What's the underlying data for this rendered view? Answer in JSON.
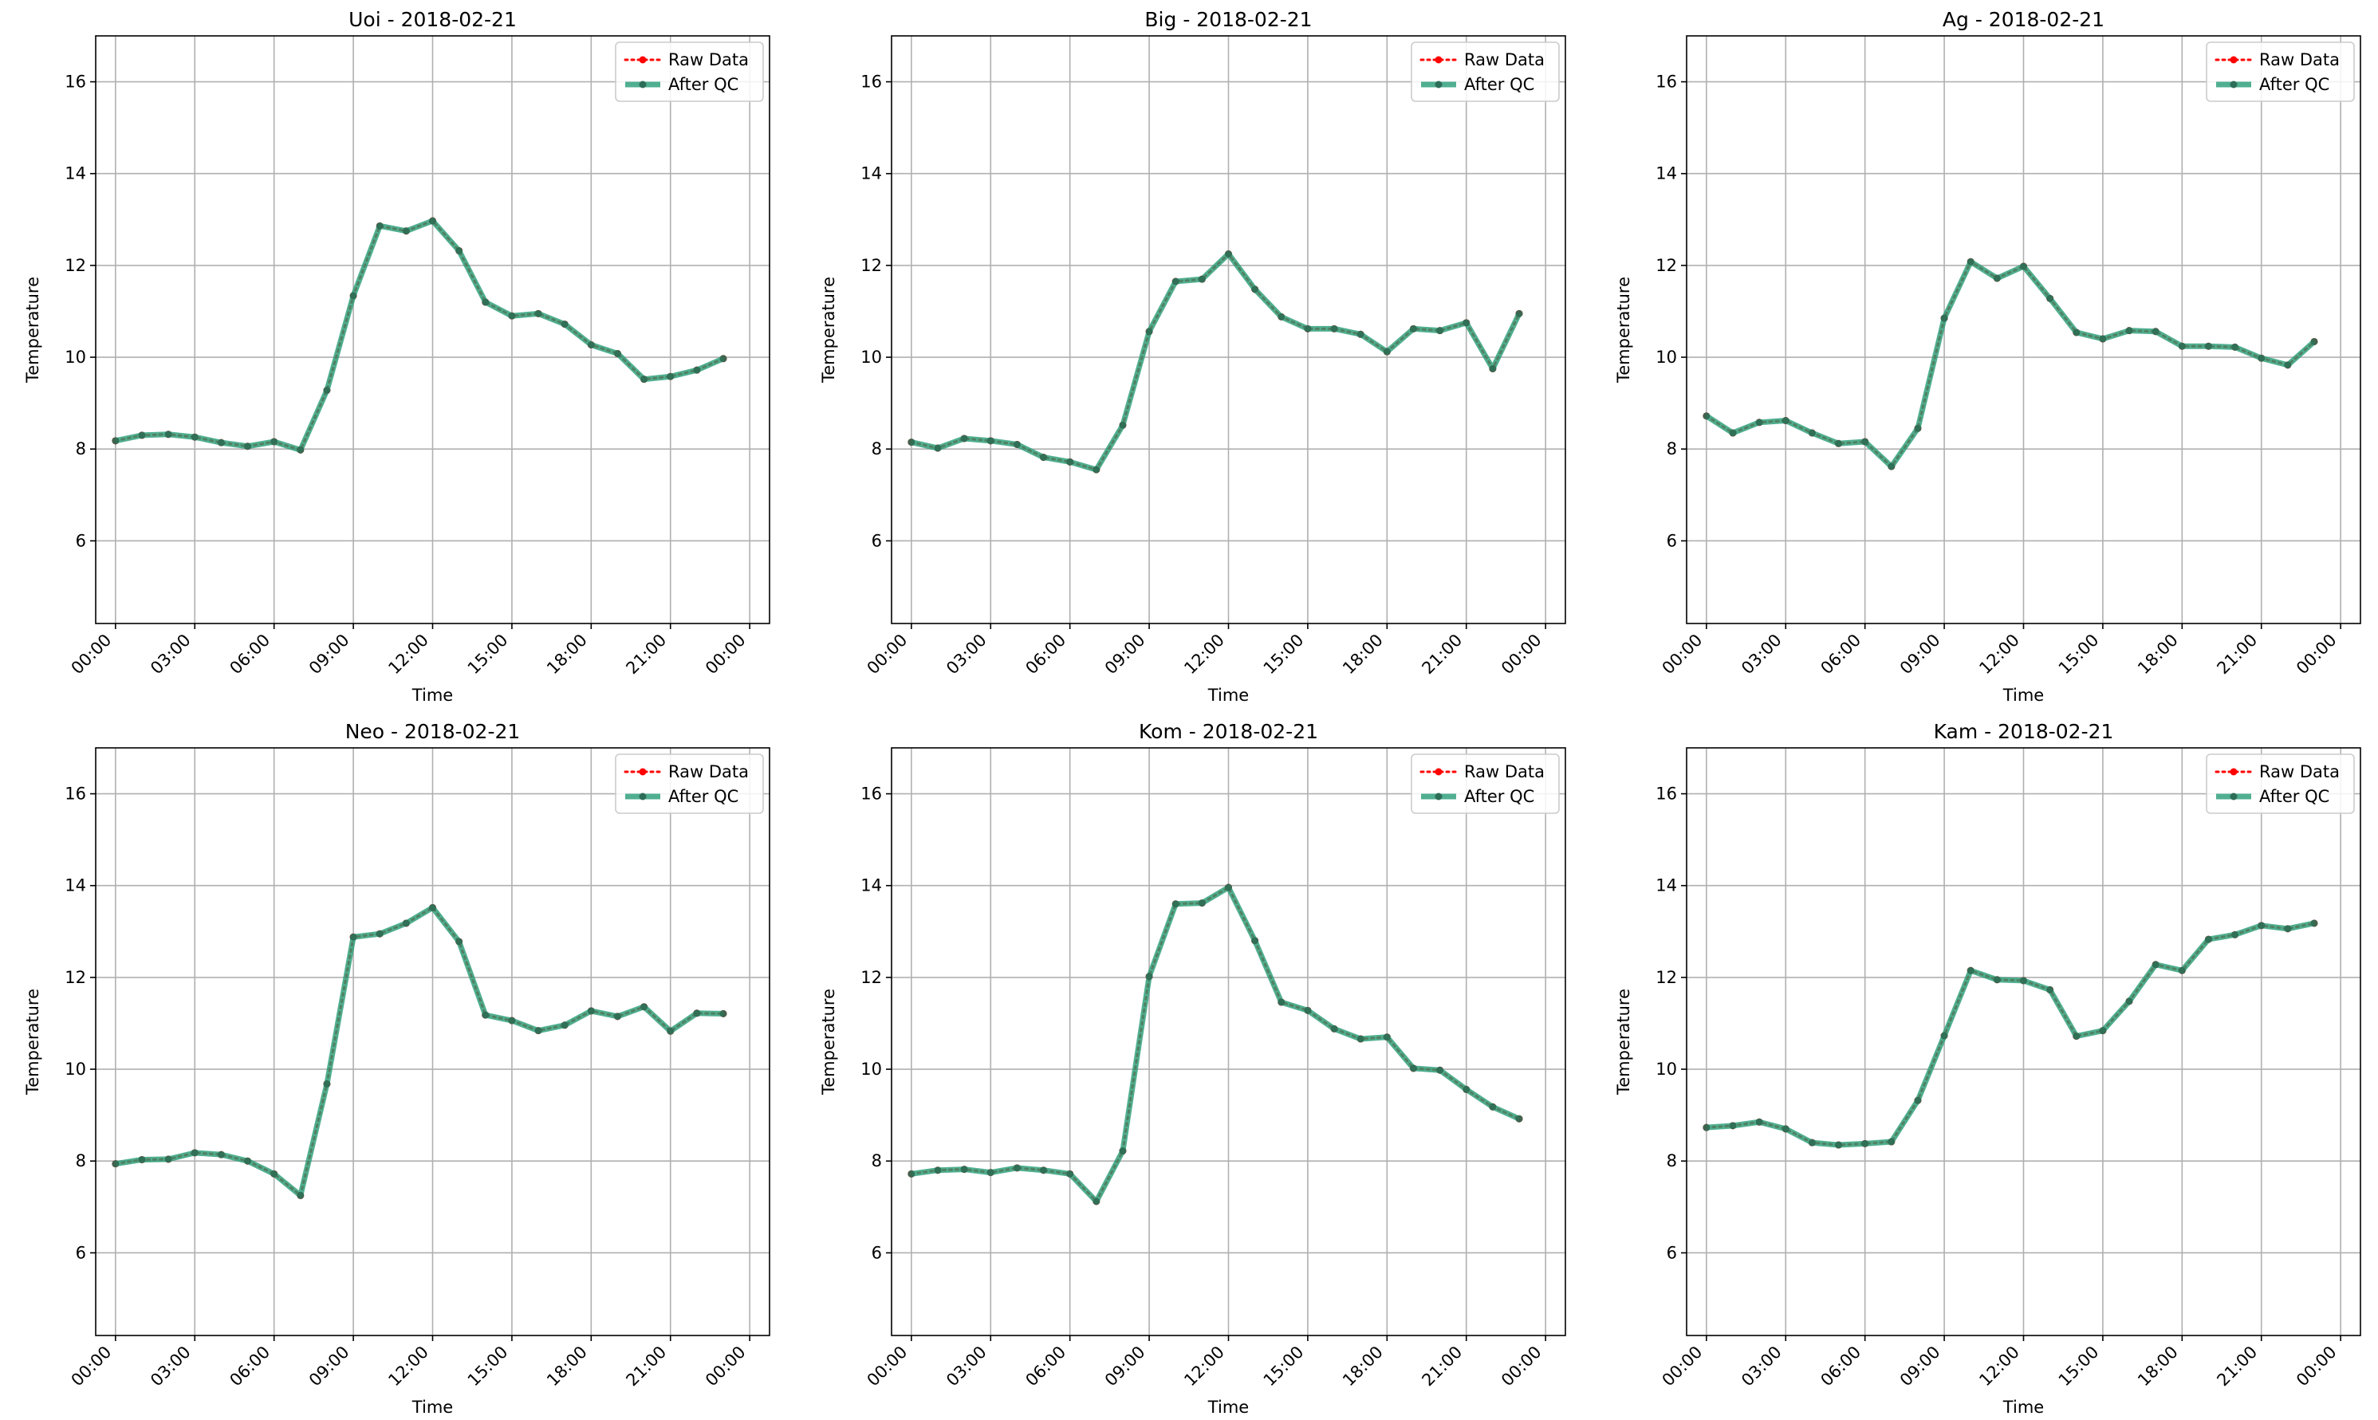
{
  "chart_data": [
    {
      "type": "line",
      "title": "Uoi - 2018-02-21",
      "xlabel": "Time",
      "ylabel": "Temperature",
      "x": [
        "00:00",
        "01:00",
        "02:00",
        "03:00",
        "04:00",
        "05:00",
        "06:00",
        "07:00",
        "08:00",
        "09:00",
        "10:00",
        "11:00",
        "12:00",
        "13:00",
        "14:00",
        "15:00",
        "16:00",
        "17:00",
        "18:00",
        "19:00",
        "20:00",
        "21:00",
        "22:00",
        "23:00"
      ],
      "xticks": [
        "00:00",
        "03:00",
        "06:00",
        "09:00",
        "12:00",
        "15:00",
        "18:00",
        "21:00",
        "00:00"
      ],
      "yticks": [
        6,
        8,
        10,
        12,
        14,
        16
      ],
      "xlim": [
        "2018-02-21 -00:45",
        "2018-02-22 00:45"
      ],
      "ylim": [
        4.2,
        17.0
      ],
      "grid": true,
      "legend": "top-right",
      "series": [
        {
          "name": "Raw Data",
          "color": "#ff0000",
          "style": "dotted",
          "values": [
            8.18,
            8.3,
            8.32,
            8.26,
            8.14,
            8.06,
            8.16,
            7.98,
            9.28,
            11.34,
            12.86,
            12.75,
            12.97,
            12.32,
            11.2,
            10.9,
            10.95,
            10.72,
            10.27,
            10.08,
            9.52,
            9.58,
            9.72,
            9.97
          ]
        },
        {
          "name": "After QC",
          "color": "#2a9d78",
          "style": "solid",
          "values": [
            8.18,
            8.3,
            8.32,
            8.26,
            8.14,
            8.06,
            8.16,
            7.98,
            9.28,
            11.34,
            12.86,
            12.75,
            12.97,
            12.32,
            11.2,
            10.9,
            10.95,
            10.72,
            10.27,
            10.08,
            9.52,
            9.58,
            9.72,
            9.97
          ]
        }
      ]
    },
    {
      "type": "line",
      "title": "Big - 2018-02-21",
      "xlabel": "Time",
      "ylabel": "Temperature",
      "x": [
        "00:00",
        "01:00",
        "02:00",
        "03:00",
        "04:00",
        "05:00",
        "06:00",
        "07:00",
        "08:00",
        "09:00",
        "10:00",
        "11:00",
        "12:00",
        "13:00",
        "14:00",
        "15:00",
        "16:00",
        "17:00",
        "18:00",
        "19:00",
        "20:00",
        "21:00",
        "22:00",
        "23:00"
      ],
      "xticks": [
        "00:00",
        "03:00",
        "06:00",
        "09:00",
        "12:00",
        "15:00",
        "18:00",
        "21:00",
        "00:00"
      ],
      "yticks": [
        6,
        8,
        10,
        12,
        14,
        16
      ],
      "ylim": [
        4.2,
        17.0
      ],
      "grid": true,
      "legend": "top-right",
      "series": [
        {
          "name": "Raw Data",
          "color": "#ff0000",
          "style": "dotted",
          "values": [
            8.15,
            8.02,
            8.23,
            8.18,
            8.1,
            7.82,
            7.72,
            7.55,
            8.52,
            10.56,
            11.65,
            11.7,
            12.25,
            11.48,
            10.88,
            10.62,
            10.62,
            10.5,
            10.12,
            10.62,
            10.58,
            10.75,
            9.75,
            10.95
          ]
        },
        {
          "name": "After QC",
          "color": "#2a9d78",
          "style": "solid",
          "values": [
            8.15,
            8.02,
            8.23,
            8.18,
            8.1,
            7.82,
            7.72,
            7.55,
            8.52,
            10.56,
            11.65,
            11.7,
            12.25,
            11.48,
            10.88,
            10.62,
            10.62,
            10.5,
            10.12,
            10.62,
            10.58,
            10.75,
            9.75,
            10.95
          ]
        }
      ]
    },
    {
      "type": "line",
      "title": "Ag - 2018-02-21",
      "xlabel": "Time",
      "ylabel": "Temperature",
      "x": [
        "00:00",
        "01:00",
        "02:00",
        "03:00",
        "04:00",
        "05:00",
        "06:00",
        "07:00",
        "08:00",
        "09:00",
        "10:00",
        "11:00",
        "12:00",
        "13:00",
        "14:00",
        "15:00",
        "16:00",
        "17:00",
        "18:00",
        "19:00",
        "20:00",
        "21:00",
        "22:00",
        "23:00"
      ],
      "xticks": [
        "00:00",
        "03:00",
        "06:00",
        "09:00",
        "12:00",
        "15:00",
        "18:00",
        "21:00",
        "00:00"
      ],
      "yticks": [
        6,
        8,
        10,
        12,
        14,
        16
      ],
      "ylim": [
        4.2,
        17.0
      ],
      "grid": true,
      "legend": "top-right",
      "series": [
        {
          "name": "Raw Data",
          "color": "#ff0000",
          "style": "dotted",
          "values": [
            8.72,
            8.35,
            8.58,
            8.62,
            8.35,
            8.12,
            8.16,
            7.62,
            8.45,
            10.85,
            12.08,
            11.72,
            11.98,
            11.28,
            10.54,
            10.4,
            10.58,
            10.56,
            10.24,
            10.24,
            10.22,
            9.98,
            9.83,
            10.34
          ]
        },
        {
          "name": "After QC",
          "color": "#2a9d78",
          "style": "solid",
          "values": [
            8.72,
            8.35,
            8.58,
            8.62,
            8.35,
            8.12,
            8.16,
            7.62,
            8.45,
            10.85,
            12.08,
            11.72,
            11.98,
            11.28,
            10.54,
            10.4,
            10.58,
            10.56,
            10.24,
            10.24,
            10.22,
            9.98,
            9.83,
            10.34
          ]
        }
      ]
    },
    {
      "type": "line",
      "title": "Neo - 2018-02-21",
      "xlabel": "Time",
      "ylabel": "Temperature",
      "x": [
        "00:00",
        "01:00",
        "02:00",
        "03:00",
        "04:00",
        "05:00",
        "06:00",
        "07:00",
        "08:00",
        "09:00",
        "10:00",
        "11:00",
        "12:00",
        "13:00",
        "14:00",
        "15:00",
        "16:00",
        "17:00",
        "18:00",
        "19:00",
        "20:00",
        "21:00",
        "22:00",
        "23:00"
      ],
      "xticks": [
        "00:00",
        "03:00",
        "06:00",
        "09:00",
        "12:00",
        "15:00",
        "18:00",
        "21:00",
        "00:00"
      ],
      "yticks": [
        6,
        8,
        10,
        12,
        14,
        16
      ],
      "ylim": [
        4.2,
        17.0
      ],
      "grid": true,
      "legend": "top-right",
      "series": [
        {
          "name": "Raw Data",
          "color": "#ff0000",
          "style": "dotted",
          "values": [
            7.94,
            8.03,
            8.04,
            8.18,
            8.14,
            8.0,
            7.72,
            7.25,
            9.68,
            12.88,
            12.95,
            13.18,
            13.52,
            12.78,
            11.18,
            11.06,
            10.84,
            10.96,
            11.27,
            11.15,
            11.36,
            10.83,
            11.22,
            11.21
          ]
        },
        {
          "name": "After QC",
          "color": "#2a9d78",
          "style": "solid",
          "values": [
            7.94,
            8.03,
            8.04,
            8.18,
            8.14,
            8.0,
            7.72,
            7.25,
            9.68,
            12.88,
            12.95,
            13.18,
            13.52,
            12.78,
            11.18,
            11.06,
            10.84,
            10.96,
            11.27,
            11.15,
            11.36,
            10.83,
            11.22,
            11.21
          ]
        }
      ]
    },
    {
      "type": "line",
      "title": "Kom - 2018-02-21",
      "xlabel": "Time",
      "ylabel": "Temperature",
      "x": [
        "00:00",
        "01:00",
        "02:00",
        "03:00",
        "04:00",
        "05:00",
        "06:00",
        "07:00",
        "08:00",
        "09:00",
        "10:00",
        "11:00",
        "12:00",
        "13:00",
        "14:00",
        "15:00",
        "16:00",
        "17:00",
        "18:00",
        "19:00",
        "20:00",
        "21:00",
        "22:00",
        "23:00"
      ],
      "xticks": [
        "00:00",
        "03:00",
        "06:00",
        "09:00",
        "12:00",
        "15:00",
        "18:00",
        "21:00",
        "00:00"
      ],
      "yticks": [
        6,
        8,
        10,
        12,
        14,
        16
      ],
      "ylim": [
        4.2,
        17.0
      ],
      "grid": true,
      "legend": "top-right",
      "series": [
        {
          "name": "Raw Data",
          "color": "#ff0000",
          "style": "dotted",
          "values": [
            7.72,
            7.8,
            7.82,
            7.75,
            7.85,
            7.8,
            7.72,
            7.12,
            8.22,
            12.02,
            13.6,
            13.62,
            13.96,
            12.8,
            11.46,
            11.28,
            10.88,
            10.66,
            10.7,
            10.02,
            9.98,
            9.56,
            9.18,
            8.92
          ]
        },
        {
          "name": "After QC",
          "color": "#2a9d78",
          "style": "solid",
          "values": [
            7.72,
            7.8,
            7.82,
            7.75,
            7.85,
            7.8,
            7.72,
            7.12,
            8.22,
            12.02,
            13.6,
            13.62,
            13.96,
            12.8,
            11.46,
            11.28,
            10.88,
            10.66,
            10.7,
            10.02,
            9.98,
            9.56,
            9.18,
            8.92
          ]
        }
      ]
    },
    {
      "type": "line",
      "title": "Kam - 2018-02-21",
      "xlabel": "Time",
      "ylabel": "Temperature",
      "x": [
        "00:00",
        "01:00",
        "02:00",
        "03:00",
        "04:00",
        "05:00",
        "06:00",
        "07:00",
        "08:00",
        "09:00",
        "10:00",
        "11:00",
        "12:00",
        "13:00",
        "14:00",
        "15:00",
        "16:00",
        "17:00",
        "18:00",
        "19:00",
        "20:00",
        "21:00",
        "22:00",
        "23:00"
      ],
      "xticks": [
        "00:00",
        "03:00",
        "06:00",
        "09:00",
        "12:00",
        "15:00",
        "18:00",
        "21:00",
        "00:00"
      ],
      "yticks": [
        6,
        8,
        10,
        12,
        14,
        16
      ],
      "ylim": [
        4.2,
        17.0
      ],
      "grid": true,
      "legend": "top-right",
      "series": [
        {
          "name": "Raw Data",
          "color": "#ff0000",
          "style": "dotted",
          "values": [
            8.73,
            8.77,
            8.85,
            8.7,
            8.4,
            8.35,
            8.38,
            8.42,
            9.32,
            10.73,
            12.15,
            11.95,
            11.93,
            11.73,
            10.72,
            10.84,
            11.48,
            12.28,
            12.15,
            12.83,
            12.93,
            13.13,
            13.06,
            13.18
          ]
        },
        {
          "name": "After QC",
          "color": "#2a9d78",
          "style": "solid",
          "values": [
            8.73,
            8.77,
            8.85,
            8.7,
            8.4,
            8.35,
            8.38,
            8.42,
            9.32,
            10.73,
            12.15,
            11.95,
            11.93,
            11.73,
            10.72,
            10.84,
            11.48,
            12.28,
            12.15,
            12.83,
            12.93,
            13.13,
            13.06,
            13.18
          ]
        }
      ]
    }
  ]
}
